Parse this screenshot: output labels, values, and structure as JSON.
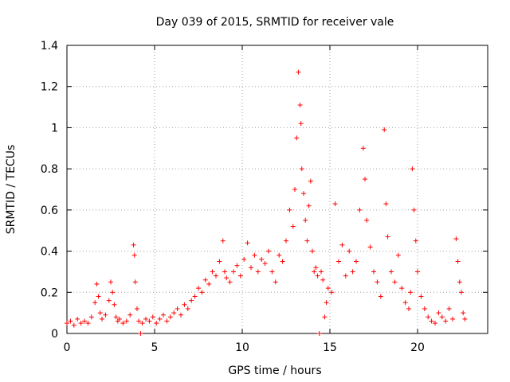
{
  "chart_data": {
    "type": "scatter",
    "title": "Day 039 of 2015, SRMTID for receiver vale",
    "xlabel": "GPS time / hours",
    "ylabel": "SRMTID / TECUs",
    "xlim": [
      0,
      24
    ],
    "ylim": [
      0,
      1.4
    ],
    "xticks": [
      0,
      5,
      10,
      15,
      20
    ],
    "xtick_labels": [
      "0",
      "5",
      "10",
      "15",
      "20"
    ],
    "yticks": [
      0,
      0.2,
      0.4,
      0.6,
      0.8,
      1,
      1.2,
      1.4
    ],
    "ytick_labels": [
      "0",
      "0.2",
      "0.4",
      "0.6",
      "0.8",
      "1",
      "1.2",
      "1.4"
    ],
    "grid": true,
    "marker": "+",
    "color": "#ff0000",
    "series": [
      {
        "name": "SRMTID",
        "x": [
          0.0,
          0.2,
          0.4,
          0.6,
          0.8,
          1.0,
          1.2,
          1.4,
          1.6,
          1.7,
          1.8,
          1.9,
          2.0,
          2.2,
          2.4,
          2.5,
          2.6,
          2.7,
          2.8,
          2.9,
          3.0,
          3.2,
          3.4,
          3.6,
          3.8,
          3.85,
          3.9,
          4.0,
          4.1,
          4.2,
          4.3,
          4.5,
          4.7,
          4.9,
          5.1,
          5.3,
          5.5,
          5.7,
          5.9,
          6.1,
          6.3,
          6.5,
          6.7,
          6.9,
          7.1,
          7.3,
          7.5,
          7.7,
          7.9,
          8.1,
          8.3,
          8.5,
          8.7,
          8.9,
          9.0,
          9.1,
          9.3,
          9.5,
          9.7,
          9.9,
          10.1,
          10.3,
          10.5,
          10.7,
          10.9,
          11.1,
          11.3,
          11.5,
          11.7,
          11.9,
          12.1,
          12.3,
          12.5,
          12.7,
          12.9,
          13.0,
          13.1,
          13.2,
          13.3,
          13.35,
          13.4,
          13.5,
          13.6,
          13.7,
          13.8,
          13.9,
          14.0,
          14.1,
          14.2,
          14.3,
          14.4,
          14.5,
          14.6,
          14.7,
          14.8,
          14.9,
          15.1,
          15.3,
          15.5,
          15.7,
          15.9,
          16.1,
          16.3,
          16.5,
          16.7,
          16.9,
          17.0,
          17.1,
          17.3,
          17.5,
          17.7,
          17.9,
          18.1,
          18.2,
          18.3,
          18.5,
          18.7,
          18.9,
          19.1,
          19.3,
          19.5,
          19.6,
          19.7,
          19.8,
          19.9,
          20.0,
          20.2,
          20.4,
          20.6,
          20.8,
          21.0,
          21.2,
          21.4,
          21.6,
          21.8,
          22.0,
          22.2,
          22.3,
          22.4,
          22.5,
          22.6,
          22.7
        ],
        "y": [
          0.05,
          0.06,
          0.04,
          0.07,
          0.05,
          0.06,
          0.05,
          0.08,
          0.15,
          0.24,
          0.18,
          0.1,
          0.07,
          0.09,
          0.16,
          0.25,
          0.2,
          0.14,
          0.08,
          0.06,
          0.07,
          0.05,
          0.06,
          0.09,
          0.43,
          0.38,
          0.25,
          0.12,
          0.06,
          0.0,
          0.05,
          0.07,
          0.06,
          0.08,
          0.05,
          0.07,
          0.09,
          0.06,
          0.08,
          0.1,
          0.12,
          0.09,
          0.14,
          0.12,
          0.16,
          0.18,
          0.22,
          0.2,
          0.26,
          0.24,
          0.3,
          0.28,
          0.35,
          0.45,
          0.3,
          0.27,
          0.25,
          0.3,
          0.33,
          0.28,
          0.36,
          0.44,
          0.32,
          0.38,
          0.3,
          0.36,
          0.34,
          0.4,
          0.3,
          0.25,
          0.38,
          0.35,
          0.45,
          0.6,
          0.52,
          0.7,
          0.95,
          1.27,
          1.11,
          1.02,
          0.8,
          0.68,
          0.55,
          0.45,
          0.62,
          0.74,
          0.4,
          0.3,
          0.32,
          0.28,
          0.0,
          0.3,
          0.26,
          0.08,
          0.15,
          0.22,
          0.2,
          0.63,
          0.35,
          0.43,
          0.28,
          0.4,
          0.3,
          0.35,
          0.6,
          0.9,
          0.75,
          0.55,
          0.42,
          0.3,
          0.25,
          0.18,
          0.99,
          0.63,
          0.47,
          0.3,
          0.25,
          0.38,
          0.22,
          0.15,
          0.12,
          0.2,
          0.8,
          0.6,
          0.45,
          0.3,
          0.18,
          0.12,
          0.08,
          0.06,
          0.05,
          0.1,
          0.08,
          0.06,
          0.12,
          0.07,
          0.46,
          0.35,
          0.25,
          0.2,
          0.1,
          0.07
        ]
      }
    ]
  }
}
